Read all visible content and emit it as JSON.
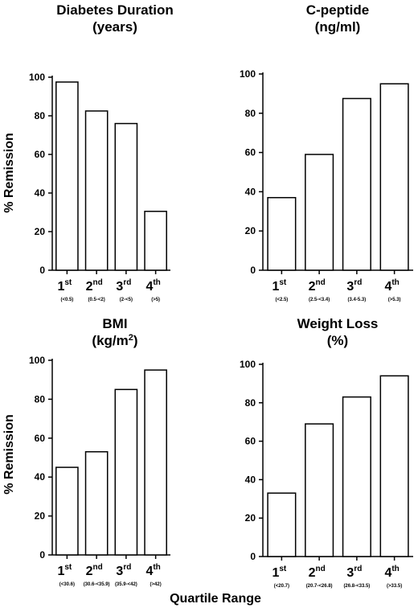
{
  "ylabel": "% Remission",
  "xlabel": "Quartile Range",
  "chart_data": [
    {
      "type": "bar",
      "title_lines": [
        "Diabetes Duration",
        "(years)"
      ],
      "categories": [
        "1st",
        "2nd",
        "3rd",
        "4th"
      ],
      "category_ranges": [
        "(<0.5)",
        "(0.5-<2)",
        "(2-<5)",
        "(>5)"
      ],
      "values": [
        97.5,
        82.5,
        76,
        30.5
      ],
      "ylabel": "% Remission",
      "ylim": [
        0,
        100
      ],
      "yticks": [
        0,
        20,
        40,
        60,
        80,
        100
      ]
    },
    {
      "type": "bar",
      "title_lines": [
        "C-peptide",
        "(ng/ml)"
      ],
      "categories": [
        "1st",
        "2nd",
        "3rd",
        "4th"
      ],
      "category_ranges": [
        "(<2.5)",
        "(2.5-<3.4)",
        "(3.4-5.3)",
        "(>5.3)"
      ],
      "values": [
        37,
        59,
        87.5,
        95
      ],
      "ylim": [
        0,
        100
      ],
      "yticks": [
        0,
        20,
        40,
        60,
        80,
        100
      ]
    },
    {
      "type": "bar",
      "title_lines": [
        "BMI",
        "(kg/m2)"
      ],
      "categories": [
        "1st",
        "2nd",
        "3rd",
        "4th"
      ],
      "category_ranges": [
        "(<30.6)",
        "(30.6-<35.9)",
        "(35.9-<42)",
        "(>42)"
      ],
      "values": [
        45,
        53,
        85,
        95
      ],
      "ylabel": "% Remission",
      "ylim": [
        0,
        100
      ],
      "yticks": [
        0,
        20,
        40,
        60,
        80,
        100
      ]
    },
    {
      "type": "bar",
      "title_lines": [
        "Weight Loss",
        "(%)"
      ],
      "categories": [
        "1st",
        "2nd",
        "3rd",
        "4th"
      ],
      "category_ranges": [
        "(<20.7)",
        "(20.7-<26.8)",
        "(26.8-<33.5)",
        "(>33.5)"
      ],
      "values": [
        33,
        69,
        83,
        94
      ],
      "xlabel": "Quartile Range",
      "ylim": [
        0,
        100
      ],
      "yticks": [
        0,
        20,
        40,
        60,
        80,
        100
      ]
    }
  ]
}
